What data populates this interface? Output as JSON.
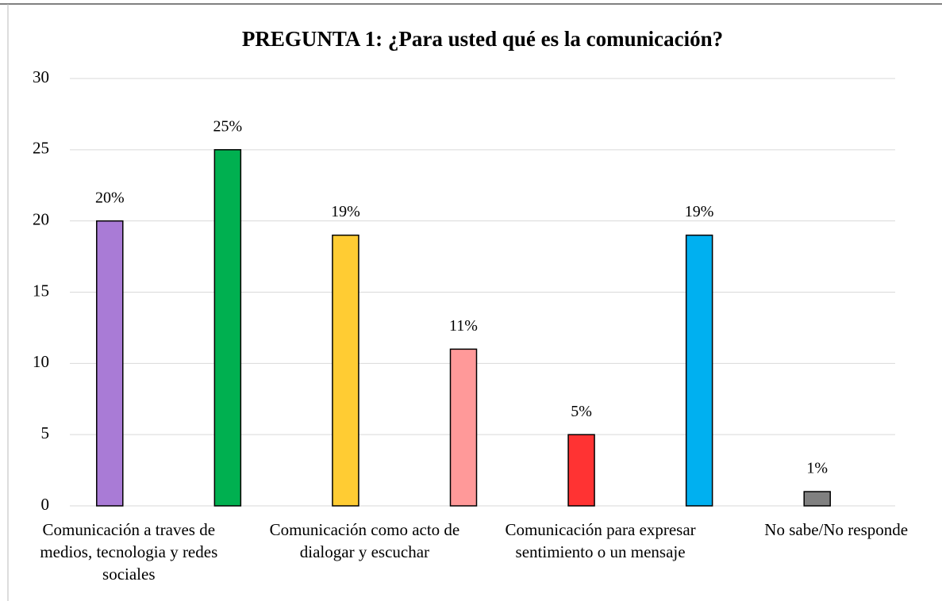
{
  "chart_data": {
    "type": "bar",
    "title": "PREGUNTA 1: ¿Para usted qué es la comunicación?",
    "categories": [
      "Comunicación a traves de medios, tecnologia y redes sociales",
      null,
      "Comunicación como acto de dialogar y escuchar",
      null,
      "Comunicación para expresar sentimiento o un mensaje",
      null,
      "No sabe/No responde"
    ],
    "values": [
      20,
      25,
      19,
      11,
      5,
      19,
      1
    ],
    "value_labels": [
      "20%",
      "25%",
      "19%",
      "11%",
      "5%",
      "19%",
      "1%"
    ],
    "colors": [
      "#a97bd6",
      "#00b050",
      "#ffcc33",
      "#ff9999",
      "#ff3333",
      "#00b0f0",
      "#808080"
    ],
    "ylim": [
      0,
      30
    ],
    "yticks": [
      0,
      5,
      10,
      15,
      20,
      25,
      30
    ],
    "grid": true
  }
}
